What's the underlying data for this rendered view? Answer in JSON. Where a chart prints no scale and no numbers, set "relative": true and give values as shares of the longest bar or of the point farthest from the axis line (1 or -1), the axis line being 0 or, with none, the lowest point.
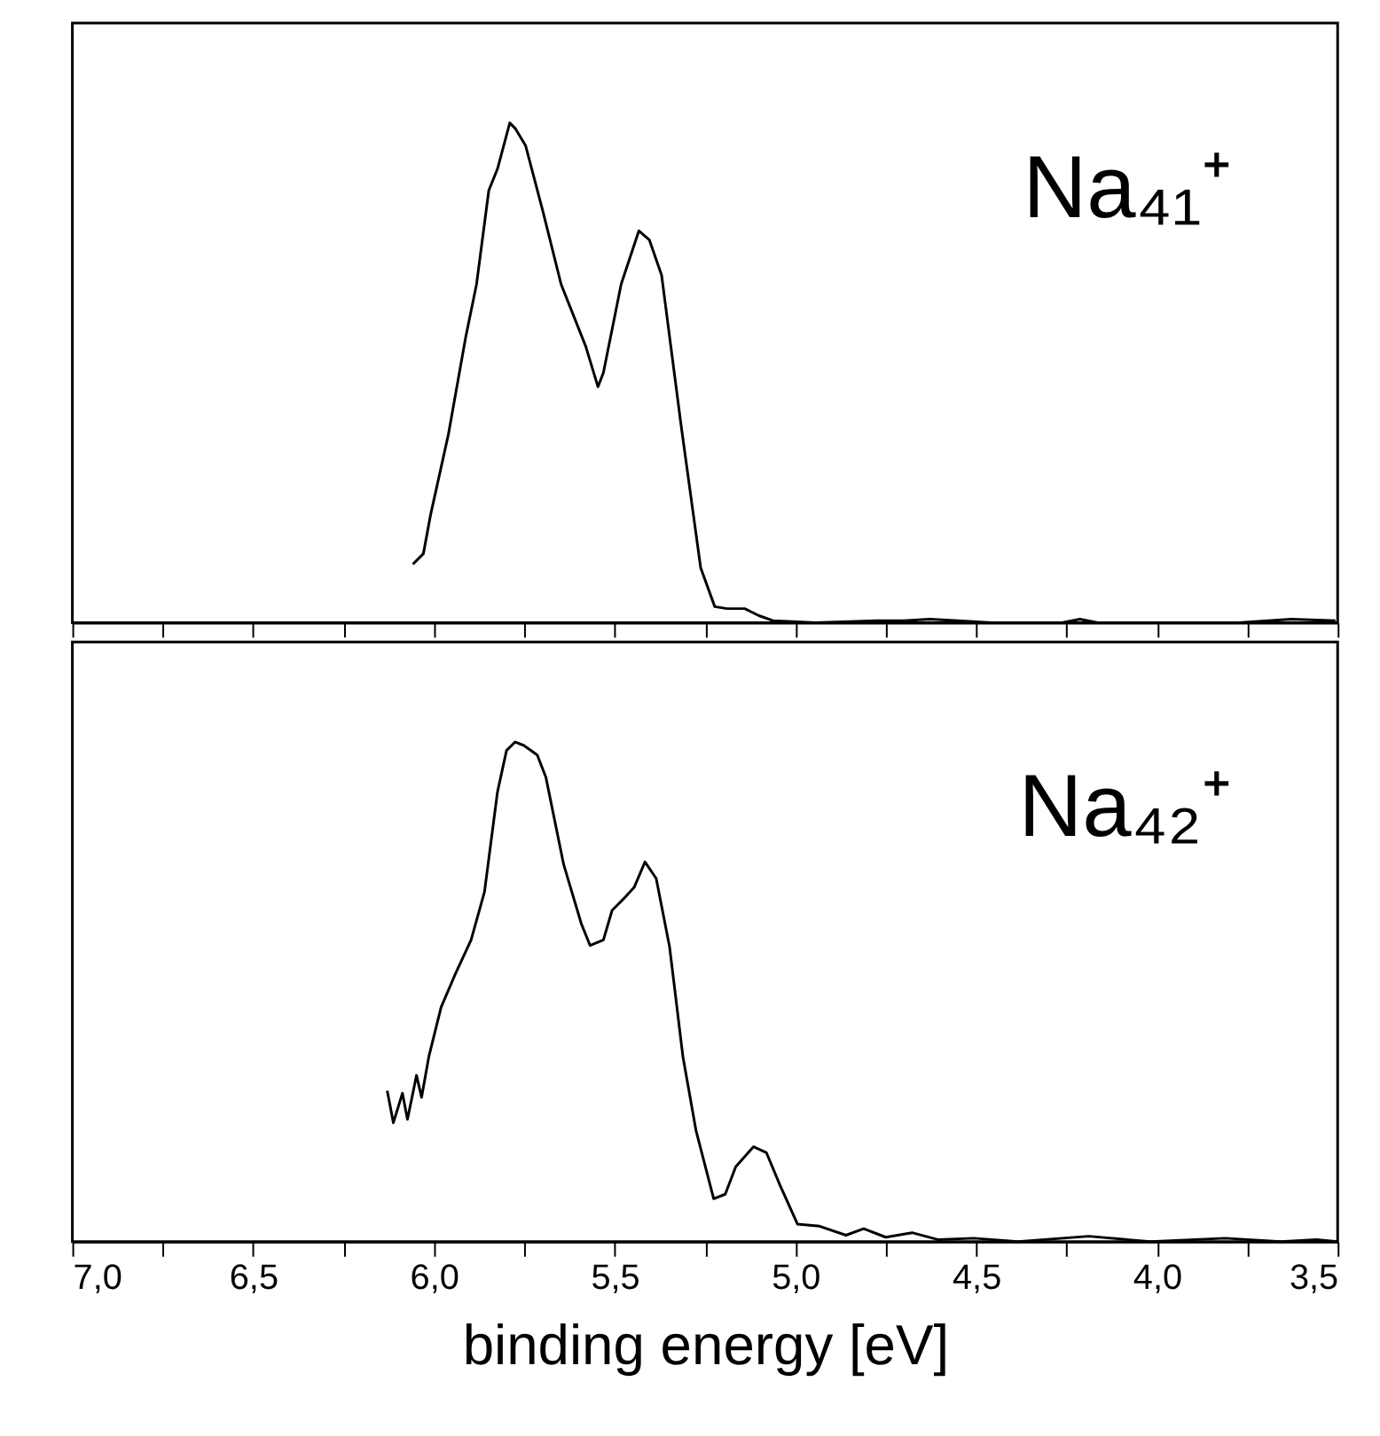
{
  "chart_data": [
    {
      "type": "line",
      "relative": true,
      "tick_labels": false,
      "marker": "none",
      "line_style": "solid",
      "grid": false,
      "xlim": [
        7.0,
        3.5
      ],
      "xticks": [
        {
          "value": 7.0,
          "label": null
        },
        {
          "value": 6.75,
          "label": null
        },
        {
          "value": 6.5,
          "label": null
        },
        {
          "value": 6.25,
          "label": null
        },
        {
          "value": 6.0,
          "label": null
        },
        {
          "value": 5.75,
          "label": null
        },
        {
          "value": 5.5,
          "label": null
        },
        {
          "value": 5.25,
          "label": null
        },
        {
          "value": 5.0,
          "label": null
        },
        {
          "value": 4.75,
          "label": null
        },
        {
          "value": 4.5,
          "label": null
        },
        {
          "value": 4.25,
          "label": null
        },
        {
          "value": 4.0,
          "label": null
        },
        {
          "value": 3.75,
          "label": null
        },
        {
          "value": 3.5,
          "label": null
        }
      ],
      "annotations": [
        "Na₄₁⁺"
      ],
      "series": [
        {
          "color": "#000000",
          "x": [
            6.058,
            6.029,
            6.009,
            5.96,
            5.912,
            5.882,
            5.848,
            5.824,
            5.79,
            5.775,
            5.746,
            5.697,
            5.648,
            5.58,
            5.546,
            5.531,
            5.482,
            5.433,
            5.404,
            5.37,
            5.316,
            5.262,
            5.223,
            5.189,
            5.14,
            5.101,
            5.062,
            4.945,
            4.775,
            4.7,
            4.628,
            4.55,
            4.457,
            4.262,
            4.213,
            4.164,
            3.774,
            3.628,
            3.506
          ],
          "values": [
            0.117,
            0.138,
            0.216,
            0.376,
            0.571,
            0.677,
            0.865,
            0.908,
            1,
            0.989,
            0.954,
            0.819,
            0.677,
            0.553,
            0.472,
            0.5,
            0.677,
            0.784,
            0.766,
            0.695,
            0.394,
            0.11,
            0.032,
            0.028,
            0.028,
            0.014,
            0.004,
            0,
            0.004,
            0.004,
            0.007,
            0.004,
            0,
            0,
            0.007,
            0,
            0,
            0.007,
            0.004
          ]
        }
      ]
    },
    {
      "type": "line",
      "relative": true,
      "tick_labels": "x",
      "marker": "none",
      "line_style": "solid",
      "grid": false,
      "xlabel": "binding energy [eV]",
      "xlim": [
        7.0,
        3.5
      ],
      "xticks": [
        {
          "value": 7.0,
          "label": "7,0"
        },
        {
          "value": 6.75,
          "label": null
        },
        {
          "value": 6.5,
          "label": "6,5"
        },
        {
          "value": 6.25,
          "label": null
        },
        {
          "value": 6.0,
          "label": "6,0"
        },
        {
          "value": 5.75,
          "label": null
        },
        {
          "value": 5.5,
          "label": "5,5"
        },
        {
          "value": 5.25,
          "label": null
        },
        {
          "value": 5.0,
          "label": "5,0"
        },
        {
          "value": 4.75,
          "label": null
        },
        {
          "value": 4.5,
          "label": "4,5"
        },
        {
          "value": 4.25,
          "label": null
        },
        {
          "value": 4.0,
          "label": "4,0"
        },
        {
          "value": 3.75,
          "label": null
        },
        {
          "value": 3.5,
          "label": "3,5"
        }
      ],
      "annotations": [
        "Na₄₂⁺"
      ],
      "series": [
        {
          "color": "#000000",
          "x": [
            6.129,
            6.112,
            6.087,
            6.073,
            6.048,
            6.034,
            6.014,
            5.98,
            5.941,
            5.897,
            5.86,
            5.824,
            5.799,
            5.775,
            5.751,
            5.714,
            5.69,
            5.641,
            5.592,
            5.568,
            5.531,
            5.507,
            5.47,
            5.446,
            5.416,
            5.385,
            5.348,
            5.311,
            5.275,
            5.226,
            5.194,
            5.165,
            5.116,
            5.08,
            5.043,
            4.994,
            4.933,
            4.86,
            4.811,
            4.75,
            4.677,
            4.604,
            4.506,
            4.384,
            4.189,
            4.018,
            3.811,
            3.657,
            3.559,
            3.5
          ],
          "values": [
            0.302,
            0.238,
            0.297,
            0.245,
            0.333,
            0.289,
            0.37,
            0.469,
            0.535,
            0.604,
            0.7,
            0.9,
            0.983,
            1,
            0.993,
            0.974,
            0.929,
            0.755,
            0.636,
            0.593,
            0.604,
            0.663,
            0.69,
            0.709,
            0.76,
            0.727,
            0.59,
            0.37,
            0.223,
            0.086,
            0.095,
            0.15,
            0.19,
            0.178,
            0.114,
            0.035,
            0.031,
            0.013,
            0.026,
            0.009,
            0.018,
            0.004,
            0.007,
            0,
            0.011,
            0,
            0.007,
            0,
            0.004,
            0
          ]
        }
      ]
    }
  ]
}
